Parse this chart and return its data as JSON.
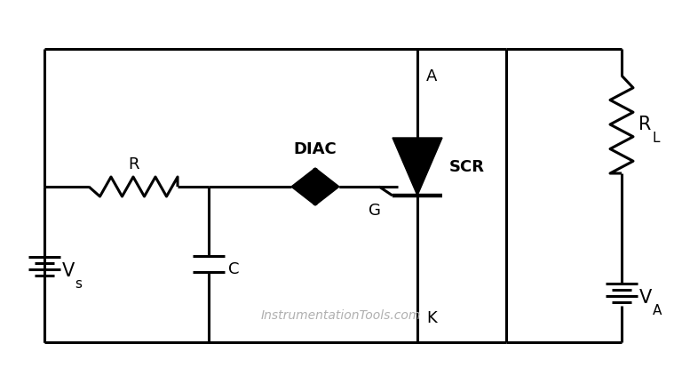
{
  "background_color": "#ffffff",
  "line_color": "#000000",
  "line_width": 2.2,
  "text_color": "#000000",
  "watermark_color": "#b0b0b0",
  "watermark_text": "InstrumentationTools.com",
  "label_R": "R",
  "label_C": "C",
  "label_DIAC": "DIAC",
  "label_SCR": "SCR",
  "label_RL": "R",
  "label_RL_sub": "L",
  "label_Vs": "V",
  "label_Vs_sub": "s",
  "label_VA": "V",
  "label_VA_sub": "A",
  "label_G": "G",
  "label_K": "K",
  "label_A": "A",
  "figsize": [
    7.68,
    4.23
  ],
  "dpi": 100
}
